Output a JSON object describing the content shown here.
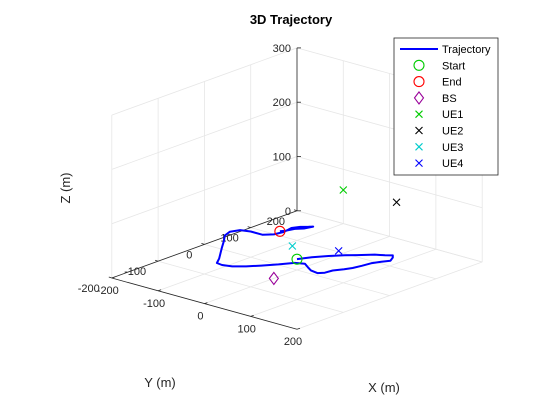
{
  "chart_data": {
    "type": "line3d",
    "title": "3D Trajectory",
    "xlabel": "X (m)",
    "ylabel": "Y (m)",
    "zlabel": "Z (m)",
    "xlim": [
      -200,
      200
    ],
    "ylim": [
      -200,
      200
    ],
    "zlim": [
      0,
      300
    ],
    "xticks": [
      -200,
      -100,
      0,
      100,
      200
    ],
    "yticks": [
      -200,
      -100,
      0,
      100,
      200
    ],
    "zticks": [
      0,
      100,
      200,
      300
    ],
    "grid": true,
    "legend_location": "top-right",
    "series": [
      {
        "name": "Trajectory",
        "kind": "line",
        "color": "#0000ff",
        "points": [
          [
            0,
            0,
            20
          ],
          [
            12,
            20,
            20
          ],
          [
            28,
            40,
            20
          ],
          [
            45,
            58,
            20
          ],
          [
            60,
            70,
            20
          ],
          [
            80,
            88,
            20
          ],
          [
            95,
            95,
            20
          ],
          [
            105,
            102,
            20
          ],
          [
            112,
            95,
            20
          ],
          [
            120,
            82,
            20
          ],
          [
            112,
            70,
            20
          ],
          [
            105,
            55,
            20
          ],
          [
            102,
            38,
            20
          ],
          [
            98,
            22,
            20
          ],
          [
            92,
            10,
            20
          ],
          [
            82,
            -5,
            20
          ],
          [
            80,
            -20,
            20
          ],
          [
            72,
            -28,
            20
          ],
          [
            55,
            -25,
            20
          ],
          [
            42,
            -18,
            20
          ],
          [
            25,
            -8,
            20
          ],
          [
            10,
            -15,
            20
          ],
          [
            -5,
            -35,
            20
          ],
          [
            -22,
            -55,
            20
          ],
          [
            -38,
            -72,
            20
          ],
          [
            -55,
            -85,
            20
          ],
          [
            -72,
            -90,
            20
          ],
          [
            -85,
            -88,
            20
          ],
          [
            -98,
            -70,
            20
          ],
          [
            -115,
            -50,
            20
          ],
          [
            -132,
            -30,
            20
          ],
          [
            -150,
            -8,
            20
          ],
          [
            -168,
            12,
            20
          ],
          [
            -175,
            30,
            20
          ],
          [
            -168,
            45,
            20
          ],
          [
            -150,
            50,
            20
          ],
          [
            -125,
            50,
            20
          ],
          [
            -112,
            62,
            20
          ],
          [
            -108,
            80,
            20
          ],
          [
            -112,
            100,
            20
          ],
          [
            -105,
            112,
            20
          ],
          [
            -95,
            120,
            20
          ],
          [
            -90,
            125,
            20
          ],
          [
            -95,
            110,
            20
          ],
          [
            -105,
            100,
            20
          ],
          [
            -110,
            85,
            20
          ],
          [
            -115,
            78,
            20
          ]
        ]
      },
      {
        "name": "Start",
        "kind": "marker",
        "marker": "circle",
        "color": "#00cc00",
        "points": [
          [
            0,
            0,
            20
          ]
        ]
      },
      {
        "name": "End",
        "kind": "marker",
        "marker": "circle",
        "color": "#ff0000",
        "points": [
          [
            -115,
            78,
            20
          ]
        ]
      },
      {
        "name": "BS",
        "kind": "marker",
        "marker": "diamond",
        "color": "#990099",
        "points": [
          [
            0,
            -50,
            0
          ]
        ]
      },
      {
        "name": "UE1",
        "kind": "marker",
        "marker": "x",
        "color": "#00cc00",
        "points": [
          [
            -30,
            130,
            100
          ]
        ]
      },
      {
        "name": "UE2",
        "kind": "marker",
        "marker": "x",
        "color": "#000000",
        "points": [
          [
            95,
            120,
            110
          ]
        ]
      },
      {
        "name": "UE3",
        "kind": "marker",
        "marker": "x",
        "color": "#00cccc",
        "points": [
          [
            -50,
            40,
            20
          ]
        ]
      },
      {
        "name": "UE4",
        "kind": "marker",
        "marker": "x",
        "color": "#0000ff",
        "points": [
          [
            60,
            30,
            40
          ]
        ]
      }
    ]
  }
}
